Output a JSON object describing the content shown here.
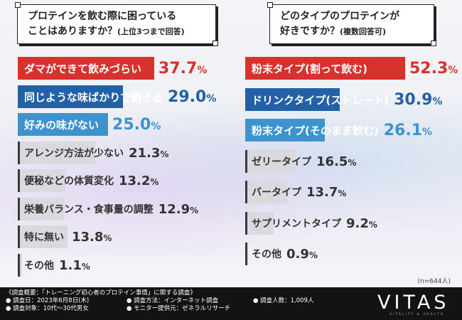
{
  "footer": {
    "overview": "《調査概要：「トレーニング初心者のプロテイン事情」に関する調査》",
    "date": "● 調査日：2023年6月8日(木)",
    "target": "● 調査対象：10代～30代男女",
    "method": "● 調査方法：インターネット調査",
    "provider": "● モニター提供元：ゼネラルリサーチ",
    "count": "● 調査人数：1,009人",
    "logo": "VITAS",
    "logo_sub": "VITALITY & HEALTH"
  },
  "chart_data": [
    {
      "type": "bar",
      "orientation": "horizontal",
      "title_line1": "プロテインを飲む際に困っている",
      "title_line2": "ことはありますか？",
      "title_note": "(上位3つまで回答)",
      "unit": "%",
      "categories": [
        "ダマができて飲みづらい",
        "同じような味ばかりで飽きる",
        "好みの味がない",
        "アレンジ方法が少ない",
        "便秘などの体質変化",
        "栄養バランス・食事量の調整",
        "特に無い",
        "その他"
      ],
      "values": [
        37.7,
        29.0,
        25.0,
        21.3,
        13.2,
        12.9,
        13.8,
        1.1
      ],
      "value_labels": [
        [
          "37.",
          "7",
          "%"
        ],
        [
          "29.",
          "0",
          "%"
        ],
        [
          "25.",
          "0",
          "%"
        ],
        [
          "21.",
          "3",
          "%"
        ],
        [
          "13.",
          "2",
          "%"
        ],
        [
          "12.",
          "9",
          "%"
        ],
        [
          "13.",
          "8",
          "%"
        ],
        [
          "1.",
          "1",
          "%"
        ]
      ],
      "bar_colors": [
        "#d8322f",
        "#2361a6",
        "#3d93cf",
        "#d9d9de",
        "#d9d9de",
        "#d9d9de",
        "#d9d9de",
        "#d9d9de"
      ],
      "value_colors": [
        "#d8322f",
        "#2361a6",
        "#3d93cf",
        "#333333",
        "#333333",
        "#333333",
        "#333333",
        "#333333"
      ]
    },
    {
      "type": "bar",
      "orientation": "horizontal",
      "title_line1": "どのタイプのプロテインが",
      "title_line2": "好きですか？",
      "title_note": "(複数回答可)",
      "unit": "%",
      "categories": [
        "粉末タイプ(割って飲む)",
        "ドリンクタイプ(ストレート)",
        "粉末タイプ(そのまま飲む)",
        "ゼリータイプ",
        "バータイプ",
        "サプリメントタイプ",
        "その他"
      ],
      "values": [
        52.3,
        30.9,
        26.1,
        16.5,
        13.7,
        9.2,
        0.9
      ],
      "value_labels": [
        [
          "52.",
          "3",
          "%"
        ],
        [
          "30.",
          "9",
          "%"
        ],
        [
          "26.",
          "1",
          "%"
        ],
        [
          "16.",
          "5",
          "%"
        ],
        [
          "13.",
          "7",
          "%"
        ],
        [
          "9.",
          "2",
          "%"
        ],
        [
          "0.",
          "9",
          "%"
        ]
      ],
      "bar_colors": [
        "#d8322f",
        "#2361a6",
        "#3d93cf",
        "#d9d9de",
        "#d9d9de",
        "#d9d9de",
        "#d9d9de"
      ],
      "value_colors": [
        "#d8322f",
        "#2361a6",
        "#3d93cf",
        "#333333",
        "#333333",
        "#333333",
        "#333333"
      ],
      "n_note": "(n=644人)"
    }
  ]
}
